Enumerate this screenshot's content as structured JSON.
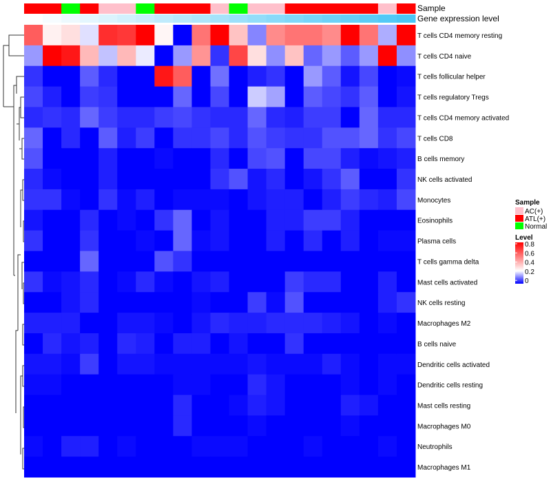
{
  "chart_data": {
    "type": "heatmap",
    "title": "",
    "annotation_labels": {
      "sample": "Sample",
      "gene": "Gene expression level"
    },
    "sample_groups": [
      "ATL(+)",
      "ATL(+)",
      "Normal",
      "ATL(+)",
      "AC(+)",
      "AC(+)",
      "Normal",
      "ATL(+)",
      "ATL(+)",
      "ATL(+)",
      "AC(+)",
      "Normal",
      "AC(+)",
      "AC(+)",
      "ATL(+)",
      "ATL(+)",
      "ATL(+)",
      "ATL(+)",
      "ATL(+)",
      "AC(+)",
      "ATL(+)"
    ],
    "gene_expression_level": [
      0,
      0.05,
      0.1,
      0.15,
      0.2,
      0.25,
      0.3,
      0.35,
      0.4,
      0.45,
      0.5,
      0.55,
      0.6,
      0.65,
      0.7,
      0.75,
      0.8,
      0.85,
      0.9,
      0.95,
      1
    ],
    "rows": [
      "T cells CD4 memory resting",
      "T cells CD4 naive",
      "T cells follicular helper",
      "T cells regulatory  Tregs",
      "T cells CD4 memory activated",
      "T cells CD8",
      "B cells memory",
      "NK cells activated",
      "Monocytes",
      "Eosinophils",
      "Plasma cells",
      "T cells gamma delta",
      "Mast cells activated",
      "NK cells resting",
      "Macrophages M2",
      "B cells naive",
      "Dendritic cells activated",
      "Dendritic cells resting",
      "Mast cells resting",
      "Macrophages M0",
      "Neutrophils",
      "Macrophages M1"
    ],
    "values": [
      [
        0.6,
        0.28,
        0.32,
        0.22,
        0.7,
        0.68,
        0.8,
        0.27,
        0,
        0.55,
        0.8,
        0.38,
        0.13,
        0.5,
        0.55,
        0.55,
        0.5,
        0.8,
        0.55,
        0.17,
        0.8
      ],
      [
        0.15,
        0.8,
        0.75,
        0.4,
        0.19,
        0.4,
        0.23,
        0,
        0.15,
        0.48,
        0.05,
        0.65,
        0.32,
        0.14,
        0.38,
        0.1,
        0.15,
        0.09,
        0.15,
        0.8,
        0.14
      ],
      [
        0.05,
        0,
        0,
        0.09,
        0.04,
        0,
        0,
        0.75,
        0.6,
        0,
        0.11,
        0,
        0.03,
        0.05,
        0,
        0.15,
        0.09,
        0.02,
        0.07,
        0,
        0.01
      ],
      [
        0.07,
        0.03,
        0,
        0.06,
        0.05,
        0,
        0,
        0,
        0.1,
        0,
        0.07,
        0,
        0.2,
        0.16,
        0,
        0.09,
        0.07,
        0.05,
        0.09,
        0,
        0.02
      ],
      [
        0.04,
        0.05,
        0.04,
        0.1,
        0.06,
        0.04,
        0.04,
        0.06,
        0.07,
        0.05,
        0.04,
        0.04,
        0.1,
        0.04,
        0.03,
        0.06,
        0.06,
        0,
        0.1,
        0.04,
        0.04
      ],
      [
        0.1,
        0,
        0.04,
        0,
        0.09,
        0.03,
        0.06,
        0,
        0.05,
        0.05,
        0.07,
        0.04,
        0.08,
        0.06,
        0.05,
        0.05,
        0.08,
        0.08,
        0.1,
        0.05,
        0.07
      ],
      [
        0.08,
        0,
        0,
        0,
        0.03,
        0,
        0,
        0.01,
        0,
        0,
        0.04,
        0,
        0.07,
        0.08,
        0,
        0.07,
        0.07,
        0.03,
        0.01,
        0.02,
        0.03
      ],
      [
        0.04,
        0.01,
        0,
        0,
        0.03,
        0,
        0,
        0,
        0,
        0,
        0.05,
        0.08,
        0.02,
        0.04,
        0,
        0.02,
        0.05,
        0.09,
        0,
        0,
        0.05
      ],
      [
        0.05,
        0.05,
        0.01,
        0,
        0.05,
        0.01,
        0.03,
        0,
        0.01,
        0.01,
        0.01,
        0,
        0.02,
        0.03,
        0.03,
        0,
        0.03,
        0.06,
        0.04,
        0.03,
        0.07
      ],
      [
        0.02,
        0,
        0,
        0.04,
        0,
        0.01,
        0,
        0.05,
        0.1,
        0,
        0.02,
        0,
        0,
        0.03,
        0.03,
        0.06,
        0.06,
        0.03,
        0,
        0,
        0
      ],
      [
        0.05,
        0,
        0,
        0.05,
        0,
        0,
        0.01,
        0,
        0.1,
        0.01,
        0.02,
        0,
        0,
        0.03,
        0,
        0.04,
        0,
        0.03,
        0,
        0.01,
        0.01
      ],
      [
        0,
        0,
        0,
        0.1,
        0,
        0,
        0,
        0.08,
        0.05,
        0,
        0,
        0,
        0,
        0,
        0,
        0,
        0,
        0,
        0,
        0,
        0
      ],
      [
        0.05,
        0.01,
        0.02,
        0.04,
        0,
        0.01,
        0.04,
        0.01,
        0,
        0.02,
        0.03,
        0,
        0,
        0,
        0.06,
        0.04,
        0.04,
        0,
        0,
        0.03,
        0
      ],
      [
        0,
        0,
        0.02,
        0.04,
        0,
        0,
        0,
        0,
        0,
        0.01,
        0,
        0,
        0.06,
        0.01,
        0.08,
        0,
        0,
        0,
        0,
        0.03,
        0.05
      ],
      [
        0.03,
        0.03,
        0.03,
        0,
        0,
        0.02,
        0.02,
        0.01,
        0,
        0.02,
        0.04,
        0.03,
        0.03,
        0.04,
        0.04,
        0.04,
        0.03,
        0.02,
        0,
        0.01,
        0
      ],
      [
        0,
        0.04,
        0.02,
        0.03,
        0,
        0.04,
        0.03,
        0,
        0.03,
        0.03,
        0,
        0.02,
        0,
        0,
        0.05,
        0,
        0,
        0,
        0,
        0,
        0
      ],
      [
        0.02,
        0.02,
        0.01,
        0.06,
        0,
        0.02,
        0.02,
        0.01,
        0.01,
        0.01,
        0.01,
        0.01,
        0.02,
        0.01,
        0.01,
        0.01,
        0.03,
        0.01,
        0,
        0.01,
        0.01
      ],
      [
        0.01,
        0.01,
        0,
        0,
        0,
        0,
        0,
        0,
        0.01,
        0.01,
        0,
        0,
        0.04,
        0.02,
        0,
        0,
        0,
        0.01,
        0,
        0.01,
        0
      ],
      [
        0,
        0,
        0,
        0,
        0,
        0,
        0,
        0,
        0.04,
        0,
        0,
        0.01,
        0.03,
        0.02,
        0,
        0,
        0,
        0.03,
        0.02,
        0,
        0
      ],
      [
        0,
        0,
        0,
        0,
        0,
        0,
        0,
        0,
        0.04,
        0,
        0,
        0,
        0.01,
        0,
        0,
        0,
        0,
        0.01,
        0,
        0,
        0
      ],
      [
        0.01,
        0,
        0.03,
        0.03,
        0,
        0.01,
        0,
        0,
        0,
        0.01,
        0.01,
        0.01,
        0,
        0,
        0,
        0.01,
        0,
        0,
        0,
        0.01,
        0
      ],
      [
        0,
        0,
        0,
        0,
        0,
        0,
        0,
        0,
        0,
        0,
        0,
        0,
        0,
        0,
        0,
        0,
        0,
        0,
        0,
        0,
        0
      ]
    ],
    "color_range": [
      0,
      0.8
    ],
    "legend": {
      "sample_title": "Sample",
      "sample_entries": [
        {
          "label": "AC(+)",
          "color": "#ffc0cb"
        },
        {
          "label": "ATL(+)",
          "color": "#ff0000"
        },
        {
          "label": "Normal",
          "color": "#00ff00"
        }
      ],
      "level_title": "Level",
      "level_ticks": [
        "0.8",
        "0.6",
        "0.4",
        "0.2",
        "0"
      ],
      "placement": "right"
    },
    "colors": {
      "low": "#0000ff",
      "mid": "#ffffff",
      "high": "#ff0000",
      "gene_low": "#ffffff",
      "gene_high": "#4ac6f5"
    }
  }
}
